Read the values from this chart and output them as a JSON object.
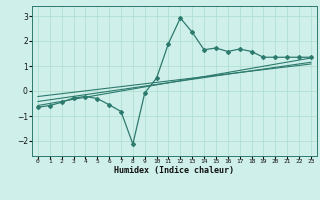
{
  "xlabel": "Humidex (Indice chaleur)",
  "bg_color": "#cff0ea",
  "line_color": "#2d7a6e",
  "xlim": [
    -0.5,
    23.5
  ],
  "ylim": [
    -2.6,
    3.4
  ],
  "yticks": [
    -2,
    -1,
    0,
    1,
    2,
    3
  ],
  "xticks": [
    0,
    1,
    2,
    3,
    4,
    5,
    6,
    7,
    8,
    9,
    10,
    11,
    12,
    13,
    14,
    15,
    16,
    17,
    18,
    19,
    20,
    21,
    22,
    23
  ],
  "scatter_x": [
    0,
    1,
    2,
    3,
    4,
    5,
    6,
    7,
    8,
    9,
    10,
    11,
    12,
    13,
    14,
    15,
    16,
    17,
    18,
    19,
    20,
    21,
    22,
    23
  ],
  "scatter_y": [
    -0.65,
    -0.58,
    -0.45,
    -0.28,
    -0.22,
    -0.3,
    -0.55,
    -0.82,
    -2.12,
    -0.08,
    0.52,
    1.9,
    2.92,
    2.35,
    1.65,
    1.72,
    1.58,
    1.68,
    1.58,
    1.35,
    1.35,
    1.35,
    1.35,
    1.35
  ],
  "line1_x": [
    0,
    23
  ],
  "line1_y": [
    -0.42,
    1.15
  ],
  "line2_x": [
    0,
    23
  ],
  "line2_y": [
    -0.22,
    1.08
  ],
  "line3_x": [
    0,
    23
  ],
  "line3_y": [
    -0.58,
    1.32
  ],
  "grid_color": "#aaddcc",
  "tick_color": "#111111",
  "spine_color": "#2d7a6e"
}
